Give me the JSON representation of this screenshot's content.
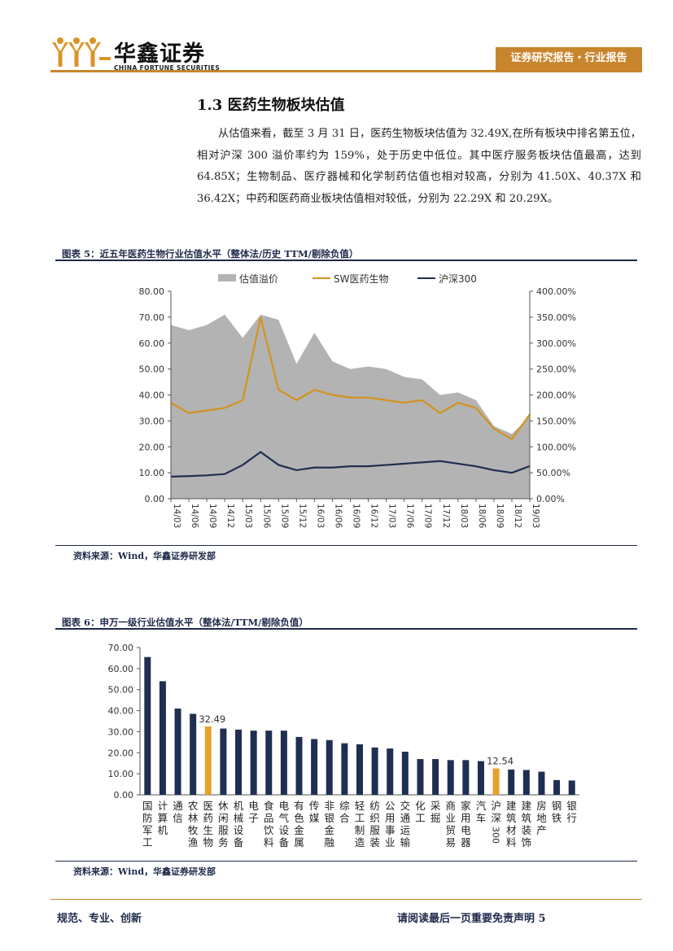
{
  "header": {
    "company_name": "华鑫证券",
    "company_name_en": "CHINA FORTUNE SECURITIES",
    "report_tag": "证券研究报告・行业报告",
    "brand_color": "#c8852d"
  },
  "section": {
    "title": "1.3 医药生物板块估值",
    "paragraph": "从估值来看，截至 3 月 31 日，医药生物板块估值为 32.49X,在所有板块中排名第五位，相对沪深 300 溢价率约为 159%，处于历史中低位。其中医疗服务板块估值最高，达到 64.85X；生物制品、医疗器械和化学制药估值也相对较高，分别为 41.50X、40.37X 和 36.42X；中药和医药商业板块估值相对较低，分别为 22.29X 和 20.29X。"
  },
  "figure5": {
    "title": "图表 5：近五年医药生物行业估值水平（整体法/历史 TTM/剔除负值）",
    "source": "资料来源：Wind，华鑫证券研发部"
  },
  "figure6": {
    "title": "图表 6：申万一级行业估值水平（整体法/TTM/剔除负值）",
    "source": "资料来源：Wind，华鑫证券研发部"
  },
  "footer": {
    "left": "规范、专业、创新",
    "right": "请阅读最后一页重要免责声明 5"
  },
  "chart_data": [
    {
      "type": "line",
      "x": [
        "14/03",
        "14/06",
        "14/09",
        "14/12",
        "15/03",
        "15/06",
        "15/09",
        "15/12",
        "16/03",
        "16/06",
        "16/09",
        "16/12",
        "17/03",
        "17/06",
        "17/09",
        "17/12",
        "18/03",
        "18/06",
        "18/09",
        "18/12",
        "19/03"
      ],
      "series": [
        {
          "name": "估值溢价",
          "axis": "right",
          "style": "area",
          "color": "#b3b3b3",
          "values": [
            335,
            325,
            335,
            355,
            310,
            355,
            345,
            260,
            320,
            265,
            250,
            255,
            250,
            235,
            230,
            200,
            205,
            190,
            140,
            125,
            158
          ]
        },
        {
          "name": "SW医药生物",
          "axis": "left",
          "style": "line",
          "color": "#d4921f",
          "values": [
            37,
            33,
            34,
            35,
            38,
            70,
            42,
            38,
            42,
            40,
            39,
            39,
            38,
            37,
            38,
            33,
            37,
            35,
            27,
            23,
            32.49
          ]
        },
        {
          "name": "沪深300",
          "axis": "left",
          "style": "line",
          "color": "#1f2f52",
          "values": [
            8.5,
            8.7,
            9,
            9.5,
            13,
            18,
            13,
            11,
            12,
            12,
            12.5,
            12.5,
            13,
            13.5,
            14,
            14.5,
            13.5,
            12.5,
            11,
            10,
            12.54
          ]
        }
      ],
      "yleft": {
        "ticks": [
          "0.00",
          "10.00",
          "20.00",
          "30.00",
          "40.00",
          "50.00",
          "60.00",
          "70.00",
          "80.00"
        ],
        "ylim": [
          0,
          80
        ]
      },
      "yright": {
        "ticks": [
          "0.00%",
          "50.00%",
          "100.00%",
          "150.00%",
          "200.00%",
          "250.00%",
          "300.00%",
          "350.00%",
          "400.00%"
        ],
        "ylim": [
          0,
          400
        ]
      },
      "legend": [
        "估值溢价",
        "SW医药生物",
        "沪深300"
      ],
      "legend_position": "top-center"
    },
    {
      "type": "bar",
      "categories": [
        "国防军工",
        "计算机",
        "通信",
        "农林牧渔",
        "医药生物",
        "休闲服务",
        "机械设备",
        "电子",
        "食品饮料",
        "电气设备",
        "有色金属",
        "传媒",
        "非银金融",
        "综合",
        "轻工制造",
        "纺织服装",
        "公用事业",
        "交通运输",
        "化工",
        "采掘",
        "商业贸易",
        "家用电器",
        "汽车",
        "沪深300",
        "建筑材料",
        "建筑装饰",
        "房地产",
        "钢铁",
        "银行"
      ],
      "values": [
        65.5,
        54,
        41,
        38.5,
        32.49,
        31.5,
        31,
        30.5,
        30.5,
        30.5,
        27.5,
        26.5,
        26,
        24.5,
        24,
        22.5,
        22,
        20.5,
        17,
        17,
        16.5,
        16.5,
        16,
        12.54,
        12,
        11.8,
        11,
        7,
        6.8
      ],
      "highlight": [
        "医药生物",
        "沪深300"
      ],
      "data_labels": {
        "医药生物": "32.49",
        "沪深300": "12.54"
      },
      "colors": {
        "default": "#1f2f52",
        "highlight": "#e6a22b"
      },
      "yticks": [
        "0.00",
        "10.00",
        "20.00",
        "30.00",
        "40.00",
        "50.00",
        "60.00",
        "70.00"
      ],
      "ylim": [
        0,
        70
      ]
    }
  ]
}
